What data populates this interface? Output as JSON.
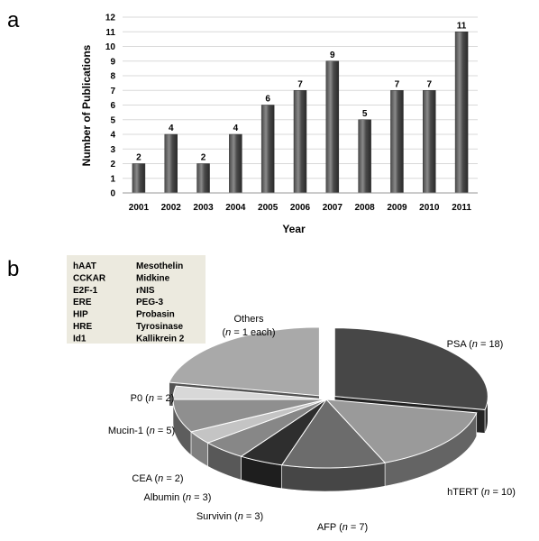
{
  "panels": {
    "a": "a",
    "b": "b"
  },
  "chart_data": [
    {
      "type": "bar",
      "categories": [
        "2001",
        "2002",
        "2003",
        "2004",
        "2005",
        "2006",
        "2007",
        "2008",
        "2009",
        "2010",
        "2011"
      ],
      "values": [
        2,
        4,
        2,
        4,
        6,
        7,
        9,
        5,
        7,
        7,
        11
      ],
      "data_labels": [
        "2",
        "4",
        "2",
        "4",
        "6",
        "7",
        "9",
        "5",
        "7",
        "7",
        "11"
      ],
      "xlabel": "Year",
      "ylabel": "Number of Publications",
      "ylim": [
        0,
        12
      ],
      "yticks": [
        "0",
        "1",
        "2",
        "3",
        "4",
        "5",
        "6",
        "7",
        "8",
        "9",
        "10",
        "11",
        "12"
      ],
      "grid": true,
      "colors": {
        "bar": "#4a4a4a",
        "bar_highlight": "#8a8a8a",
        "grid": "#d9d9d9"
      }
    },
    {
      "type": "pie",
      "style": "3d-exploded",
      "slices": [
        {
          "label_parts": [
            "PSA (",
            "n",
            " = 18)"
          ],
          "value": 18,
          "color": "#474747"
        },
        {
          "label_parts": [
            "hTERT (",
            "n",
            " = 10)"
          ],
          "value": 10,
          "color": "#9a9a9a"
        },
        {
          "label_parts": [
            "AFP (",
            "n",
            " = 7)"
          ],
          "value": 7,
          "color": "#6c6c6c"
        },
        {
          "label_parts": [
            "Survivin (",
            "n",
            " = 3)"
          ],
          "value": 3,
          "color": "#2e2e2e"
        },
        {
          "label_parts": [
            "Albumin (",
            "n",
            " = 3)"
          ],
          "value": 3,
          "color": "#878787"
        },
        {
          "label_parts": [
            "CEA (",
            "n",
            " = 2)"
          ],
          "value": 2,
          "color": "#c4c4c4"
        },
        {
          "label_parts": [
            "Mucin-1 (",
            "n",
            " = 5)"
          ],
          "value": 5,
          "color": "#8f8f8f"
        },
        {
          "label_parts": [
            "P0 (",
            "n",
            " = 2)"
          ],
          "value": 2,
          "color": "#d8d8d8"
        },
        {
          "label_parts": [
            "Others",
            "(",
            "n",
            " = 1 each)"
          ],
          "value": 14,
          "color": "#a9a9a9"
        }
      ],
      "others_box": {
        "col1": [
          "hAAT",
          "CCKAR",
          "E2F-1",
          "ERE",
          "HIP",
          "HRE",
          "Id1"
        ],
        "col2": [
          "Mesothelin",
          "Midkine",
          "rNIS",
          "PEG-3",
          "Probasin",
          "Tyrosinase",
          "Kallikrein 2"
        ],
        "background": "#eceadf"
      }
    }
  ]
}
